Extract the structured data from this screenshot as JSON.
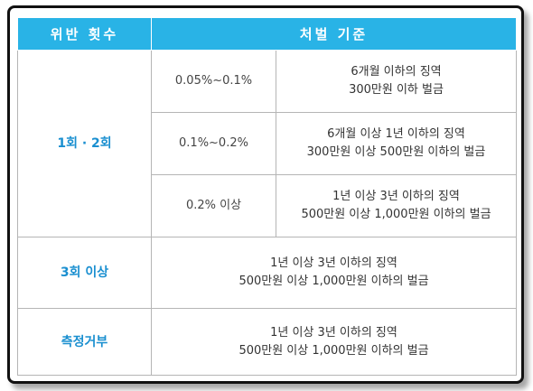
{
  "header": {
    "col1": "위반 횟수",
    "col2": "처벌 기준"
  },
  "groups": [
    {
      "label": "1회 · 2회",
      "rows": [
        {
          "range": "0.05%~0.1%",
          "line1": "6개월 이하의 징역",
          "line2": "300만원 이하 벌금"
        },
        {
          "range": "0.1%~0.2%",
          "line1": "6개월 이상 1년 이하의 징역",
          "line2": "300만원 이상 500만원 이하의 벌금"
        },
        {
          "range": "0.2% 이상",
          "line1": "1년 이상 3년 이하의 징역",
          "line2": "500만원 이상 1,000만원 이하의 벌금"
        }
      ]
    },
    {
      "label": "3회 이상",
      "line1": "1년 이상 3년 이하의 징역",
      "line2": "500만원 이상 1,000만원 이하의 벌금"
    },
    {
      "label": "측정거부",
      "line1": "1년 이상 3년 이하의 징역",
      "line2": "500만원 이상 1,000만원 이하의 벌금"
    }
  ]
}
